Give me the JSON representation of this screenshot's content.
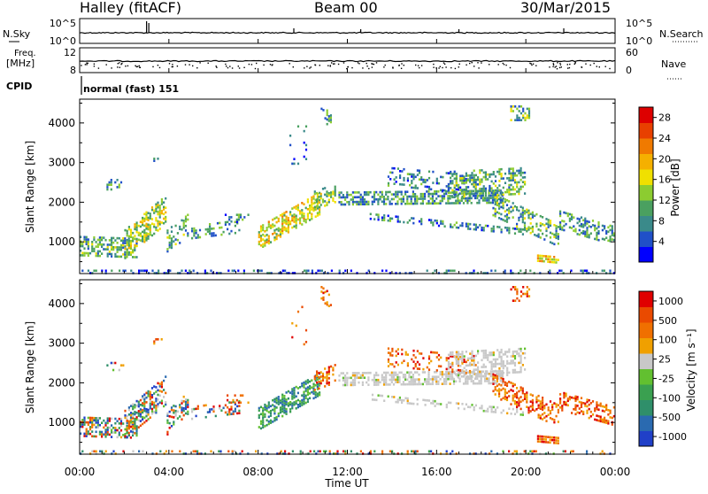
{
  "header": {
    "title": "Halley (fitACF)",
    "beam": "Beam 00",
    "date": "30/Mar/2015"
  },
  "side_labels": {
    "nsky": "N.Sky",
    "nsearch": "N.Search",
    "freq": "Freq.",
    "freq_unit": "[MHz]",
    "nave": "Nave",
    "cpid": "CPID",
    "cpid_value": "normal (fast) 151"
  },
  "colors": {
    "power": [
      "#0000ff",
      "#2050c8",
      "#3a8a8a",
      "#4aa060",
      "#8ccc30",
      "#f0e000",
      "#f5b000",
      "#f07a00",
      "#e84000",
      "#dd0000"
    ],
    "velocity": [
      "#2040c8",
      "#2a6ab0",
      "#2f8f6a",
      "#3aa050",
      "#62c030",
      "#c8c8c8",
      "#f0a000",
      "#f07000",
      "#ea4a00",
      "#e00000"
    ]
  },
  "chart_data": [
    {
      "type": "line",
      "name": "noise-panel",
      "left_ticks": [
        "10^5",
        "10^0"
      ],
      "right_ticks": [
        "10^5",
        "10^0"
      ],
      "ylabel_left": "N.Sky",
      "ylabel_right": "N.Search"
    },
    {
      "type": "scatter",
      "name": "frequency-panel",
      "left_ticks": [
        "12",
        "8"
      ],
      "right_ticks": [
        "60",
        "0"
      ],
      "ylabel_left": "Freq. [MHz]",
      "ylabel_right": "Nave"
    },
    {
      "type": "heatmap",
      "name": "power-panel",
      "ylabel": "Slant Range [km]",
      "yticks": [
        1000,
        2000,
        3000,
        4000
      ],
      "ylim": [
        200,
        4600
      ],
      "xlim": [
        0,
        24
      ],
      "colorbar": {
        "label": "Power [dB]",
        "ticks": [
          "4",
          "8",
          "12",
          "16",
          "20",
          "24",
          "28"
        ],
        "range": [
          0,
          30
        ]
      }
    },
    {
      "type": "heatmap",
      "name": "velocity-panel",
      "ylabel": "Slant Range [km]",
      "yticks": [
        1000,
        2000,
        3000,
        4000
      ],
      "ylim": [
        200,
        4600
      ],
      "xlim": [
        0,
        24
      ],
      "colorbar": {
        "label": "Velocity [m s⁻¹]",
        "ticks": [
          "1000",
          "500",
          "100",
          "25",
          "-25",
          "-100",
          "-500",
          "-1000"
        ]
      }
    }
  ],
  "xaxis": {
    "label": "Time UT",
    "ticks": [
      "00:00",
      "04:00",
      "08:00",
      "12:00",
      "16:00",
      "20:00",
      "00:00"
    ],
    "tick_hours": [
      0,
      4,
      8,
      12,
      16,
      20,
      24
    ]
  }
}
